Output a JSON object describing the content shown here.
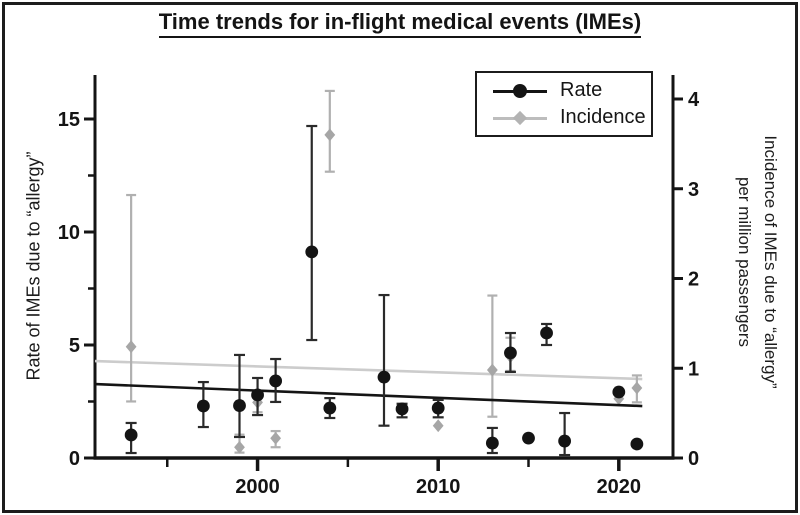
{
  "figure": {
    "title": "Time trends for in-flight medical events (IMEs)"
  },
  "chart_data": {
    "type": "scatter",
    "title": "Time trends for in-flight medical events (IMEs)",
    "grid": false,
    "legend_position": "top-right-inside",
    "x_axis": {
      "range": [
        1991,
        2023
      ],
      "major_ticks": [
        2000,
        2010,
        2020
      ],
      "minor_ticks": [
        1995,
        2005,
        2015
      ]
    },
    "left_axis": {
      "label": "Rate of IMEs due to “allergy”",
      "range": [
        0,
        16.9
      ],
      "major_ticks": [
        0,
        5,
        10,
        15
      ],
      "minor_ticks": [
        2.5,
        7.5,
        12.5
      ]
    },
    "right_axis": {
      "label_line1": "Incidence of IMEs due to “allergy”",
      "label_line2": "per million passengers",
      "range": [
        0,
        4.27
      ],
      "major_ticks": [
        0,
        1,
        2,
        3,
        4
      ]
    },
    "series": [
      {
        "name": "Rate",
        "axis": "left",
        "marker": "circle",
        "color": "#141414",
        "error_color": "#2a2a2a",
        "trend_color": "#141414",
        "trend": {
          "year0": 1991.0,
          "v0": 3.27,
          "year1": 2021.3,
          "v1": 2.3
        },
        "points": [
          {
            "year": 1993,
            "value": 1.02,
            "lo": 0.22,
            "hi": 1.55
          },
          {
            "year": 1997,
            "value": 2.3,
            "lo": 1.37,
            "hi": 3.36
          },
          {
            "year": 1999,
            "value": 2.32,
            "lo": 0.93,
            "hi": 4.56
          },
          {
            "year": 2000,
            "value": 2.79,
            "lo": 1.9,
            "hi": 3.54
          },
          {
            "year": 2001,
            "value": 3.41,
            "lo": 2.48,
            "hi": 4.38
          },
          {
            "year": 2003,
            "value": 9.12,
            "lo": 5.22,
            "hi": 14.69
          },
          {
            "year": 2004,
            "value": 2.21,
            "lo": 1.77,
            "hi": 2.65
          },
          {
            "year": 2007,
            "value": 3.58,
            "lo": 1.43,
            "hi": 7.21
          },
          {
            "year": 2008,
            "value": 2.17,
            "lo": 1.8,
            "hi": 2.4
          },
          {
            "year": 2010,
            "value": 2.21,
            "lo": 1.8,
            "hi": 2.57
          },
          {
            "year": 2013,
            "value": 0.66,
            "lo": 0.22,
            "hi": 1.33
          },
          {
            "year": 2014,
            "value": 4.65,
            "lo": 3.81,
            "hi": 5.53
          },
          {
            "year": 2015,
            "value": 0.88,
            "lo": null,
            "hi": null
          },
          {
            "year": 2016,
            "value": 5.53,
            "lo": 5.0,
            "hi": 5.93
          },
          {
            "year": 2017,
            "value": 0.75,
            "lo": 0.13,
            "hi": 1.99
          },
          {
            "year": 2020,
            "value": 2.92,
            "lo": null,
            "hi": null
          },
          {
            "year": 2021,
            "value": 0.62,
            "lo": null,
            "hi": null
          }
        ]
      },
      {
        "name": "Incidence",
        "axis": "right",
        "marker": "diamond",
        "color": "#a6a6a6",
        "error_color": "#b0b0b0",
        "trend_color": "#cccccc",
        "trend": {
          "year0": 1991.0,
          "v0": 1.08,
          "year1": 2021.3,
          "v1": 0.88
        },
        "points": [
          {
            "year": 1993,
            "value": 1.24,
            "lo": 0.63,
            "hi": 2.93
          },
          {
            "year": 1999,
            "value": 0.12,
            "lo": 0.06,
            "hi": 0.26
          },
          {
            "year": 2000,
            "value": 0.62,
            "lo": 0.51,
            "hi": 0.69
          },
          {
            "year": 2001,
            "value": 0.22,
            "lo": 0.12,
            "hi": 0.3
          },
          {
            "year": 2004,
            "value": 3.6,
            "lo": 3.19,
            "hi": 4.09
          },
          {
            "year": 2010,
            "value": 0.36,
            "lo": null,
            "hi": null
          },
          {
            "year": 2013,
            "value": 0.98,
            "lo": 0.46,
            "hi": 1.81
          },
          {
            "year": 2014,
            "value": 1.13,
            "lo": 0.97,
            "hi": 1.34
          },
          {
            "year": 2020,
            "value": 0.66,
            "lo": null,
            "hi": null
          },
          {
            "year": 2021,
            "value": 0.78,
            "lo": 0.62,
            "hi": 0.92
          }
        ]
      }
    ]
  }
}
